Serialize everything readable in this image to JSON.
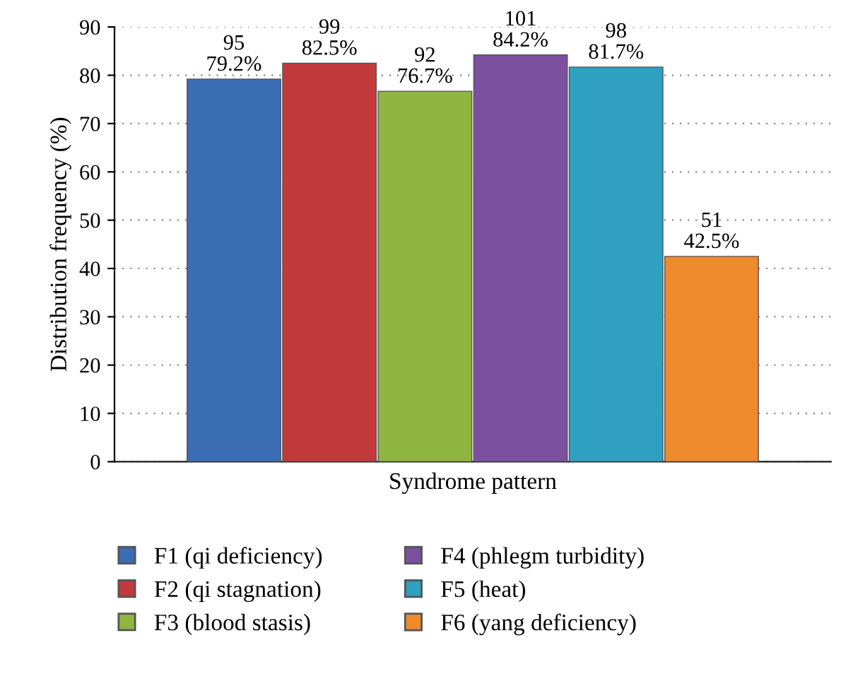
{
  "chart_data": {
    "type": "bar",
    "xlabel": "Syndrome pattern",
    "ylabel": "Distribution frequency (%)",
    "categories": [
      null
    ],
    "series": [
      {
        "name": "F1 (qi deficiency)",
        "color": "#3b6db5",
        "values": [
          79.2
        ],
        "value_labels": [
          "95\n79.2%"
        ]
      },
      {
        "name": "F2 (qi stagnation)",
        "color": "#c23a3c",
        "values": [
          82.5
        ],
        "value_labels": [
          "99\n82.5%"
        ]
      },
      {
        "name": "F3 (blood stasis)",
        "color": "#8fb541",
        "values": [
          76.7
        ],
        "value_labels": [
          "92\n76.7%"
        ]
      },
      {
        "name": "F4 (phlegm turbidity)",
        "color": "#7b509f",
        "values": [
          84.2
        ],
        "value_labels": [
          "101\n84.2%"
        ]
      },
      {
        "name": "F5 (heat)",
        "color": "#2fa0c0",
        "values": [
          81.7
        ],
        "value_labels": [
          "98\n81.7%"
        ]
      },
      {
        "name": "F6 (yang deficiency)",
        "color": "#ee892c",
        "values": [
          42.5
        ],
        "value_labels": [
          "51\n42.5%"
        ]
      }
    ],
    "ylim": [
      0,
      90
    ],
    "yticks": [
      0,
      10,
      20,
      30,
      40,
      50,
      60,
      70,
      80,
      90
    ],
    "grid": "y",
    "legend": "bottom"
  }
}
